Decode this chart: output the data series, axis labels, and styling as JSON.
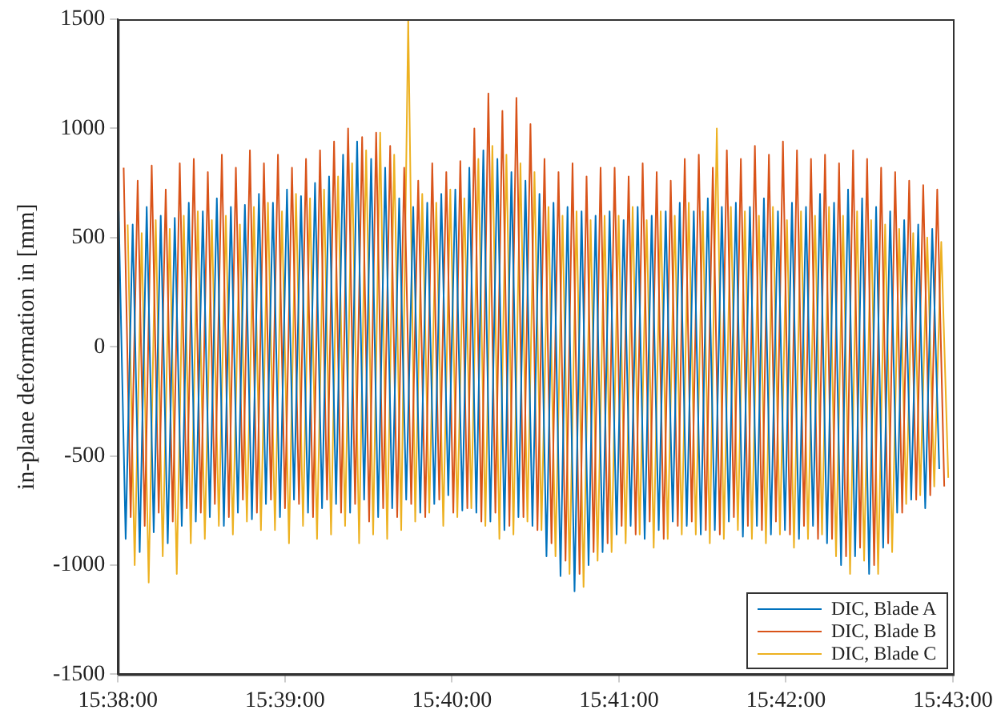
{
  "chart_data": {
    "type": "line",
    "ylabel": "in-plane deformation in [mm]",
    "xlim": [
      15.633333,
      15.716667
    ],
    "xticks": [
      {
        "value": 15.633333,
        "label": "15:38:00"
      },
      {
        "value": 15.65,
        "label": "15:39:00"
      },
      {
        "value": 15.666667,
        "label": "15:40:00"
      },
      {
        "value": 15.683333,
        "label": "15:41:00"
      },
      {
        "value": 15.7,
        "label": "15:42:00"
      },
      {
        "value": 15.716667,
        "label": "15:43:00"
      }
    ],
    "ylim": [
      -1500,
      1500
    ],
    "yticks": [
      -1500,
      -1000,
      -500,
      0,
      500,
      1000,
      1500
    ],
    "grid": false,
    "legend": "bottom right",
    "marker": "none",
    "line_style": "solid",
    "series": [
      {
        "name": "DIC, Blade A",
        "color": "#0072bd",
        "x": [
          15.6334,
          15.6341,
          15.6348,
          15.6355,
          15.6362,
          15.6369,
          15.6376,
          15.6383,
          15.639,
          15.6397,
          15.6404,
          15.6411,
          15.6418,
          15.6425,
          15.6432,
          15.6439,
          15.6446,
          15.6453,
          15.646,
          15.6467,
          15.6474,
          15.6481,
          15.6488,
          15.6495,
          15.6502,
          15.6509,
          15.6516,
          15.6523,
          15.653,
          15.6537,
          15.6544,
          15.6551,
          15.6558,
          15.6565,
          15.6572,
          15.6579,
          15.6586,
          15.6593,
          15.66,
          15.6607,
          15.6614,
          15.6621,
          15.6628,
          15.6635,
          15.6642,
          15.6649,
          15.6656,
          15.6663,
          15.667,
          15.6677,
          15.6684,
          15.6691,
          15.6698,
          15.6705,
          15.6712,
          15.6719,
          15.6726,
          15.6733,
          15.674,
          15.6747,
          15.6754,
          15.6761,
          15.6768,
          15.6775,
          15.6782,
          15.6789,
          15.6796,
          15.6803,
          15.681,
          15.6817,
          15.6824,
          15.6831,
          15.6838,
          15.6845,
          15.6852,
          15.6859,
          15.6866,
          15.6873,
          15.688,
          15.6887,
          15.6894,
          15.6901,
          15.6908,
          15.6915,
          15.6922,
          15.6929,
          15.6936,
          15.6943,
          15.695,
          15.6957,
          15.6964,
          15.6971,
          15.6978,
          15.6985,
          15.6992,
          15.6999,
          15.7006,
          15.7013,
          15.702,
          15.7027,
          15.7034,
          15.7041,
          15.7048,
          15.7055,
          15.7062,
          15.7069,
          15.7076,
          15.7083,
          15.709,
          15.7097,
          15.7104,
          15.7111,
          15.7118,
          15.7125,
          15.7132,
          15.7139,
          15.7146,
          15.7153
        ],
        "values": [
          620,
          -880,
          560,
          -940,
          640,
          -850,
          600,
          -900,
          590,
          -820,
          660,
          -800,
          620,
          -780,
          680,
          -820,
          640,
          -760,
          650,
          -790,
          700,
          -720,
          660,
          -780,
          720,
          -700,
          690,
          -760,
          750,
          -740,
          780,
          -720,
          880,
          -760,
          940,
          -700,
          860,
          -780,
          820,
          -740,
          680,
          -700,
          640,
          -760,
          660,
          -720,
          700,
          -680,
          720,
          -750,
          820,
          -760,
          900,
          -800,
          860,
          -840,
          800,
          -780,
          760,
          -820,
          700,
          -960,
          660,
          -1050,
          640,
          -1120,
          620,
          -1000,
          600,
          -940,
          620,
          -860,
          580,
          -820,
          640,
          -880,
          600,
          -840,
          620,
          -800,
          660,
          -820,
          620,
          -860,
          680,
          -840,
          640,
          -800,
          660,
          -870,
          640,
          -820,
          680,
          -860,
          620,
          -840,
          660,
          -880,
          640,
          -820,
          700,
          -900,
          660,
          -1000,
          720,
          -960,
          680,
          -1040,
          640,
          -920,
          620,
          -760,
          580,
          -700,
          560,
          -740,
          540,
          -560
        ]
      },
      {
        "name": "DIC, Blade B",
        "color": "#d95319",
        "x": [
          15.6339,
          15.6346,
          15.6353,
          15.636,
          15.6367,
          15.6374,
          15.6381,
          15.6388,
          15.6395,
          15.6402,
          15.6409,
          15.6416,
          15.6423,
          15.643,
          15.6437,
          15.6444,
          15.6451,
          15.6458,
          15.6465,
          15.6472,
          15.6479,
          15.6486,
          15.6493,
          15.65,
          15.6507,
          15.6514,
          15.6521,
          15.6528,
          15.6535,
          15.6542,
          15.6549,
          15.6556,
          15.6563,
          15.657,
          15.6577,
          15.6584,
          15.6591,
          15.6598,
          15.6605,
          15.6612,
          15.6619,
          15.6626,
          15.6633,
          15.664,
          15.6647,
          15.6654,
          15.6661,
          15.6668,
          15.6675,
          15.6682,
          15.6689,
          15.6696,
          15.6703,
          15.671,
          15.6717,
          15.6724,
          15.6731,
          15.6738,
          15.6745,
          15.6752,
          15.6759,
          15.6766,
          15.6773,
          15.678,
          15.6787,
          15.6794,
          15.6801,
          15.6808,
          15.6815,
          15.6822,
          15.6829,
          15.6836,
          15.6843,
          15.685,
          15.6857,
          15.6864,
          15.6871,
          15.6878,
          15.6885,
          15.6892,
          15.6899,
          15.6906,
          15.6913,
          15.692,
          15.6927,
          15.6934,
          15.6941,
          15.6948,
          15.6955,
          15.6962,
          15.6969,
          15.6976,
          15.6983,
          15.699,
          15.6997,
          15.7004,
          15.7011,
          15.7018,
          15.7025,
          15.7032,
          15.7039,
          15.7046,
          15.7053,
          15.706,
          15.7067,
          15.7074,
          15.7081,
          15.7088,
          15.7095,
          15.7102,
          15.7109,
          15.7116,
          15.7123,
          15.713,
          15.7137,
          15.7144,
          15.7151,
          15.7158
        ],
        "values": [
          820,
          -780,
          760,
          -820,
          830,
          -760,
          720,
          -800,
          840,
          -740,
          860,
          -760,
          800,
          -720,
          880,
          -780,
          820,
          -700,
          900,
          -760,
          840,
          -700,
          880,
          -740,
          820,
          -720,
          860,
          -780,
          900,
          -700,
          940,
          -760,
          1000,
          -720,
          960,
          -800,
          980,
          -740,
          920,
          -780,
          820,
          -720,
          760,
          -780,
          840,
          -700,
          800,
          -760,
          850,
          -740,
          1000,
          -800,
          1160,
          -760,
          1080,
          -820,
          1140,
          -780,
          1020,
          -840,
          860,
          -900,
          800,
          -980,
          840,
          -1040,
          780,
          -940,
          820,
          -900,
          820,
          -820,
          780,
          -860,
          840,
          -800,
          800,
          -880,
          760,
          -820,
          860,
          -800,
          880,
          -840,
          820,
          -860,
          900,
          -780,
          860,
          -820,
          920,
          -840,
          880,
          -800,
          940,
          -860,
          900,
          -820,
          860,
          -880,
          880,
          -880,
          840,
          -960,
          900,
          -920,
          860,
          -1000,
          820,
          -900,
          800,
          -760,
          760,
          -700,
          740,
          -680,
          720,
          -640
        ]
      },
      {
        "name": "DIC, Blade C",
        "color": "#edb120",
        "x": [
          15.6343,
          15.635,
          15.6357,
          15.6364,
          15.6371,
          15.6378,
          15.6385,
          15.6392,
          15.6399,
          15.6406,
          15.6413,
          15.642,
          15.6427,
          15.6434,
          15.6441,
          15.6448,
          15.6455,
          15.6462,
          15.6469,
          15.6476,
          15.6483,
          15.649,
          15.6497,
          15.6504,
          15.6511,
          15.6518,
          15.6525,
          15.6532,
          15.6539,
          15.6546,
          15.6553,
          15.656,
          15.6567,
          15.6574,
          15.6581,
          15.6588,
          15.6595,
          15.6602,
          15.6609,
          15.6616,
          15.6623,
          15.663,
          15.6637,
          15.6644,
          15.6651,
          15.6658,
          15.6665,
          15.6672,
          15.6679,
          15.6686,
          15.6693,
          15.67,
          15.6707,
          15.6714,
          15.6721,
          15.6728,
          15.6735,
          15.6742,
          15.6749,
          15.6756,
          15.6763,
          15.677,
          15.6777,
          15.6784,
          15.6791,
          15.6798,
          15.6805,
          15.6812,
          15.6819,
          15.6826,
          15.6833,
          15.684,
          15.6847,
          15.6854,
          15.6861,
          15.6868,
          15.6875,
          15.6882,
          15.6889,
          15.6896,
          15.6903,
          15.691,
          15.6917,
          15.6924,
          15.6931,
          15.6938,
          15.6945,
          15.6952,
          15.6959,
          15.6966,
          15.6973,
          15.698,
          15.6987,
          15.6994,
          15.7001,
          15.7008,
          15.7015,
          15.7022,
          15.7029,
          15.7036,
          15.7043,
          15.705,
          15.7057,
          15.7064,
          15.7071,
          15.7078,
          15.7085,
          15.7092,
          15.7099,
          15.7106,
          15.7113,
          15.712,
          15.7127,
          15.7134,
          15.7141,
          15.7148,
          15.7155,
          15.7162
        ],
        "values": [
          560,
          -1000,
          520,
          -1080,
          580,
          -960,
          540,
          -1040,
          600,
          -900,
          620,
          -880,
          580,
          -820,
          600,
          -860,
          560,
          -800,
          640,
          -840,
          660,
          -840,
          620,
          -900,
          700,
          -820,
          680,
          -880,
          720,
          -860,
          780,
          -820,
          840,
          -900,
          900,
          -860,
          980,
          -880,
          880,
          -840,
          1500,
          -800,
          700,
          -760,
          660,
          -820,
          720,
          -780,
          680,
          -740,
          860,
          -820,
          920,
          -880,
          880,
          -860,
          840,
          -800,
          800,
          -840,
          640,
          -960,
          600,
          -1040,
          620,
          -1100,
          580,
          -980,
          600,
          -940,
          600,
          -900,
          640,
          -860,
          580,
          -920,
          620,
          -880,
          600,
          -860,
          660,
          -860,
          620,
          -900,
          1000,
          -880,
          640,
          -840,
          620,
          -880,
          600,
          -900,
          640,
          -860,
          580,
          -920,
          620,
          -880,
          600,
          -860,
          640,
          -960,
          600,
          -1040,
          620,
          -980,
          580,
          -1040,
          560,
          -940,
          540,
          -720,
          520,
          -680,
          500,
          -640,
          480,
          -600
        ]
      }
    ]
  }
}
